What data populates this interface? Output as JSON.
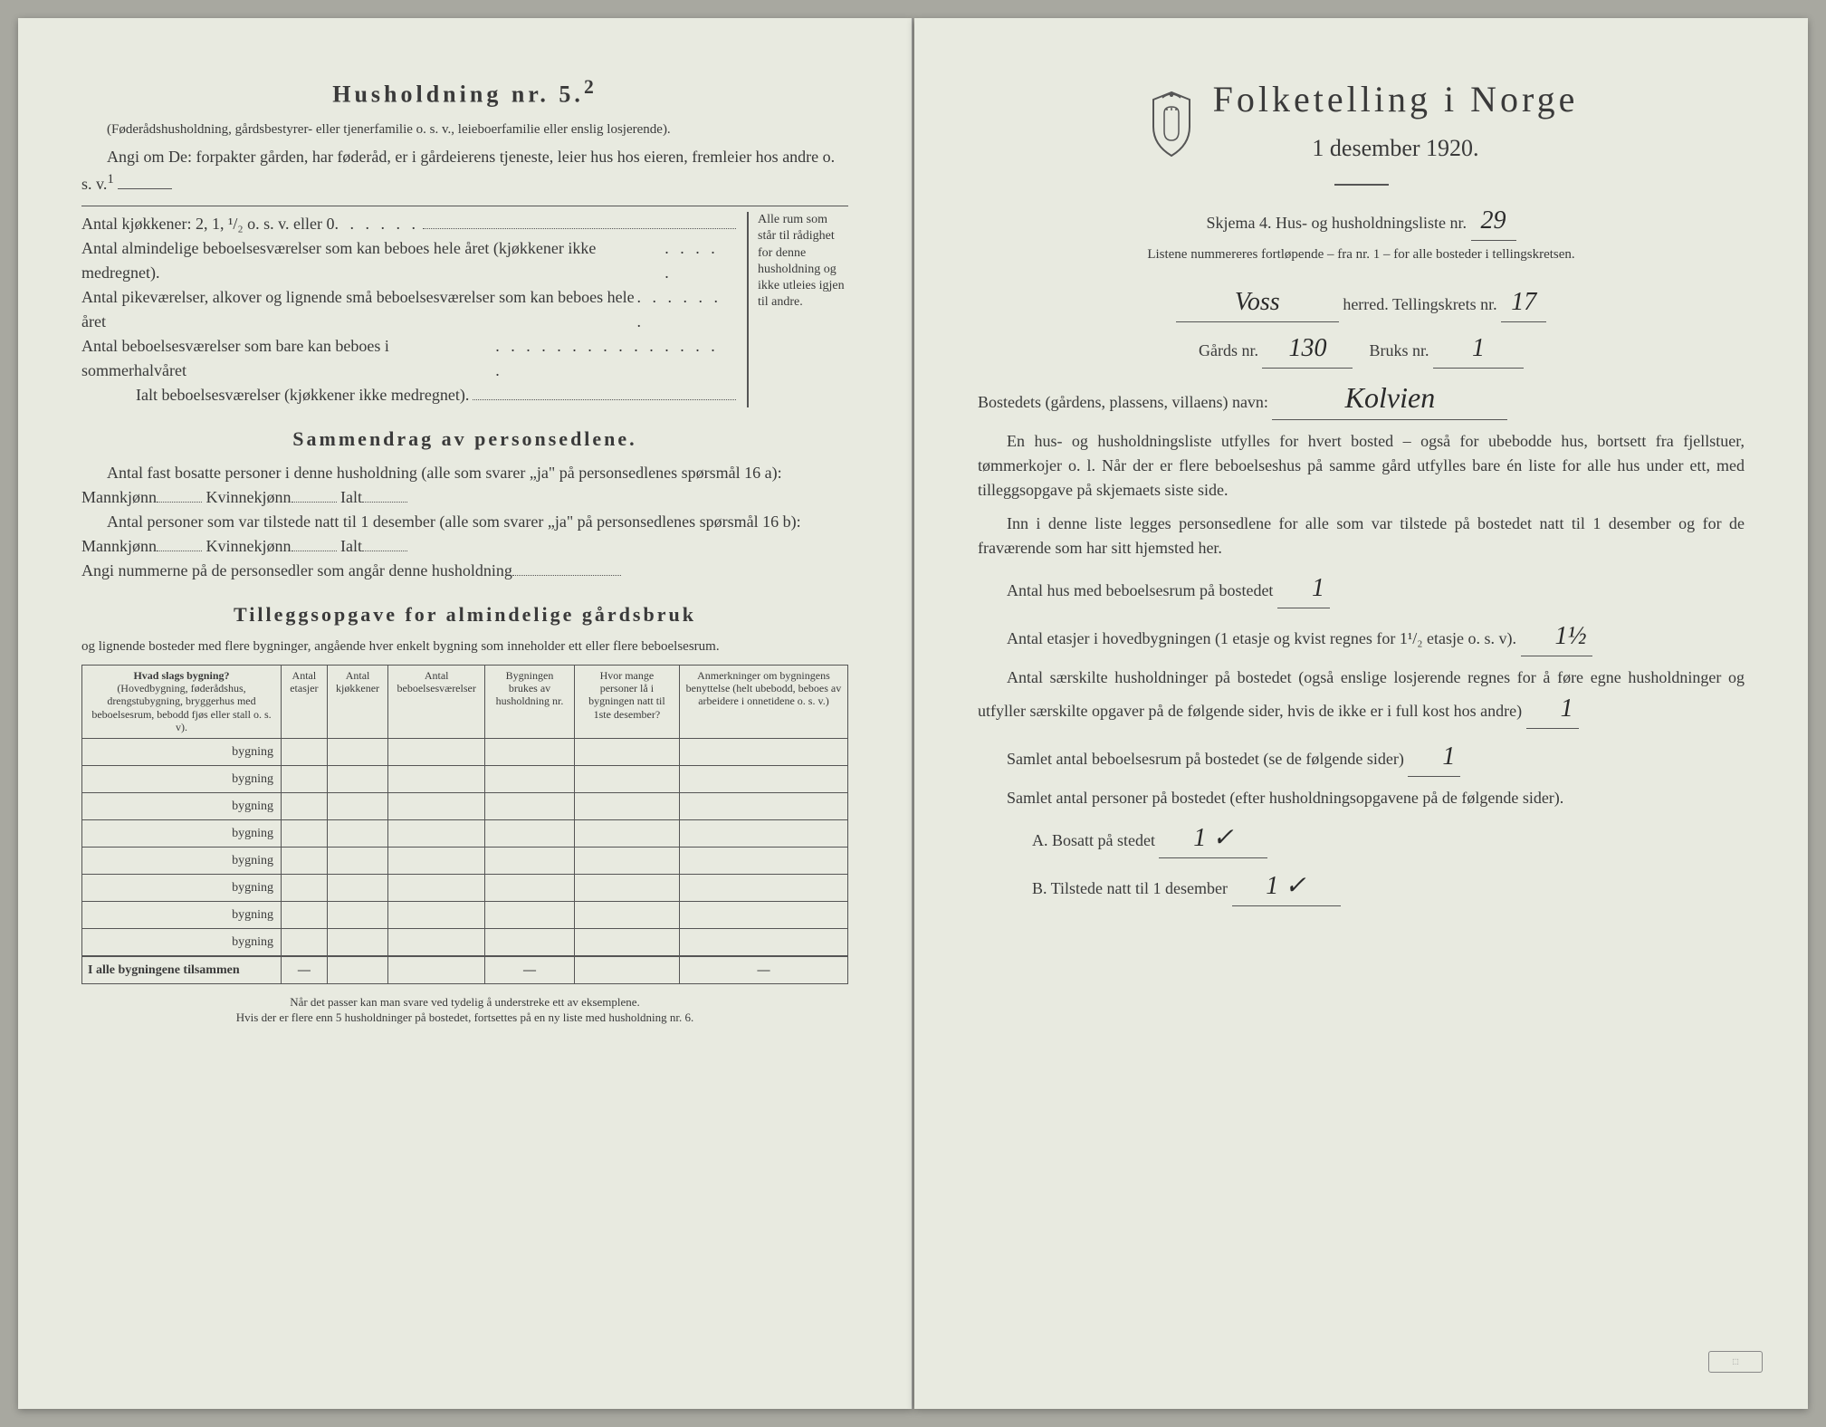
{
  "left": {
    "heading5": "Husholdning nr. 5.",
    "heading5_sup": "2",
    "sub5": "(Føderådshusholdning, gårdsbestyrer- eller tjenerfamilie o. s. v., leieboerfamilie eller enslig losjerende).",
    "angi_om": "Angi om De:  forpakter gården, har føderåd, er i gårdeierens tjeneste, leier hus hos eieren, fremleier hos andre o. s. v.",
    "angi_sup": "1",
    "kjokkener": "Antal kjøkkener: 2, 1, ¹/₂ o. s. v. eller 0",
    "alm_bebo": "Antal almindelige beboelsesværelser som kan beboes hele året (kjøkkener ikke medregnet).",
    "pike": "Antal pikeværelser, alkover og lignende små beboelsesværelser som kan beboes hele året",
    "sommer": "Antal beboelsesværelser som bare kan beboes i sommerhalvåret",
    "ialt": "Ialt beboelsesværelser (kjøkkener ikke medregnet).",
    "sidebar_text": "Alle rum som står til rådighet for denne husholdning og ikke utleies igjen til andre.",
    "sammendrag": "Sammendrag av personsedlene.",
    "s1": "Antal fast bosatte personer i denne husholdning (alle som svarer „ja\" på personsedlenes spørsmål 16 a): Mannkjønn",
    "kvinne": "Kvinnekjønn",
    "ialt_lbl": "Ialt",
    "s2": "Antal personer som var tilstede natt til 1 desember (alle som svarer „ja\" på personsedlenes spørsmål 16 b): Mannkjønn",
    "angi_num": "Angi nummerne på de personsedler som angår denne husholdning",
    "tillegg": "Tilleggsopgave for almindelige gårdsbruk",
    "tillegg_sub": "og lignende bosteder med flere bygninger, angående hver enkelt bygning som inneholder ett eller flere beboelsesrum.",
    "th1": "Hvad slags bygning?",
    "th1_sub": "(Hovedbygning, føderådshus, drengstubygning, bryggerhus med beboelsesrum, bebodd fjøs eller stall o. s. v).",
    "th2": "Antal etasjer",
    "th3": "Antal kjøkkener",
    "th4": "Antal beboelsesværelser",
    "th5": "Bygningen brukes av husholdning nr.",
    "th6": "Hvor mange personer lå i bygningen natt til 1ste desember?",
    "th7": "Anmerkninger om bygningens benyttelse (helt ubebodd, beboes av arbeidere i onnetidene o. s. v.)",
    "bygning": "bygning",
    "total": "I alle bygningene tilsammen",
    "fn1": "Når det passer kan man svare ved tydelig å understreke ett av eksemplene.",
    "fn2": "Hvis der er flere enn 5 husholdninger på bostedet, fortsettes på en ny liste med husholdning nr. 6."
  },
  "right": {
    "title": "Folketelling i Norge",
    "date": "1 desember 1920.",
    "skjema": "Skjema 4.   Hus- og husholdningsliste nr.",
    "liste_nr": "29",
    "listene": "Listene nummereres fortløpende – fra nr. 1 – for alle bosteder i tellingskretsen.",
    "herred_val": "Voss",
    "herred": "herred.   Tellingskrets nr.",
    "krets_nr": "17",
    "gards_lbl": "Gårds nr.",
    "gards_nr": "130",
    "bruks_lbl": "Bruks nr.",
    "bruks_nr": "1",
    "bosted_lbl": "Bostedets (gårdens, plassens, villaens) navn:",
    "bosted_val": "Kolvien",
    "p1": "En hus- og husholdningsliste utfylles for hvert bosted – også for ubebodde hus, bortsett fra fjellstuer, tømmerkojer o. l.  Når der er flere beboelseshus på samme gård utfylles bare én liste for alle hus under ett, med tilleggsopgave på skjemaets siste side.",
    "p2": "Inn i denne liste legges personsedlene for alle som var tilstede på bostedet natt til 1 desember og for de fraværende som har sitt hjemsted her.",
    "antal_hus": "Antal hus med beboelsesrum på bostedet",
    "antal_hus_val": "1",
    "etasjer": "Antal etasjer i hovedbygningen (1 etasje og kvist regnes for 1¹/₂ etasje o. s. v).",
    "etasjer_val": "1½",
    "saer": "Antal særskilte husholdninger på bostedet (også enslige losjerende regnes for å føre egne husholdninger og utfyller særskilte opgaver på de følgende sider, hvis de ikke er i full kost hos andre)",
    "saer_val": "1",
    "samlet_rum": "Samlet antal beboelsesrum på bostedet (se de følgende sider)",
    "samlet_rum_val": "1",
    "samlet_pers": "Samlet antal personer på bostedet (efter husholdningsopgavene på de følgende sider).",
    "a": "A.   Bosatt på stedet",
    "a_val": "1 ✓",
    "b": "B.   Tilstede natt til 1 desember",
    "b_val": "1 ✓"
  },
  "colors": {
    "paper": "#e8eae0",
    "ink": "#3a3a3a",
    "handwriting": "#2a2a2a"
  }
}
